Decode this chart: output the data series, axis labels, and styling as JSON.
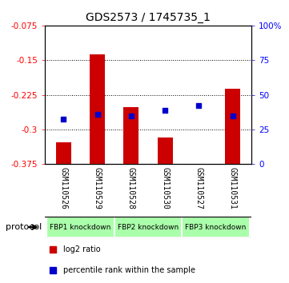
{
  "title": "GDS2573 / 1745735_1",
  "categories": [
    "GSM110526",
    "GSM110529",
    "GSM110528",
    "GSM110530",
    "GSM110527",
    "GSM110531"
  ],
  "log2_values": [
    -0.328,
    -0.138,
    -0.252,
    -0.318,
    -0.375,
    -0.212
  ],
  "bar_bottom": -0.375,
  "percentile_values": [
    -0.277,
    -0.268,
    -0.27,
    -0.258,
    -0.248,
    -0.27
  ],
  "ylim_left": [
    -0.375,
    -0.075
  ],
  "yticks_left": [
    -0.375,
    -0.3,
    -0.225,
    -0.15,
    -0.075
  ],
  "ytick_labels_left": [
    "-0.375",
    "-0.3",
    "-0.225",
    "-0.15",
    "-0.075"
  ],
  "yticks_right": [
    0,
    25,
    50,
    75,
    100
  ],
  "ytick_labels_right": [
    "0",
    "25",
    "50",
    "75",
    "100%"
  ],
  "bar_color": "#cc0000",
  "marker_color": "#0000cc",
  "groups": [
    {
      "label": "FBP1 knockdown",
      "indices": [
        0,
        1
      ],
      "color": "#aaffaa"
    },
    {
      "label": "FBP2 knockdown",
      "indices": [
        2,
        3
      ],
      "color": "#aaffaa"
    },
    {
      "label": "FBP3 knockdown",
      "indices": [
        4,
        5
      ],
      "color": "#aaffaa"
    }
  ],
  "protocol_label": "protocol",
  "legend_items": [
    {
      "label": "log2 ratio",
      "color": "#cc0000"
    },
    {
      "label": "percentile rank within the sample",
      "color": "#0000cc"
    }
  ],
  "background_color": "#ffffff",
  "plot_bg_color": "#ffffff",
  "xticklabel_bg": "#cccccc",
  "title_fontsize": 10,
  "tick_fontsize": 7.5,
  "bar_width": 0.45
}
